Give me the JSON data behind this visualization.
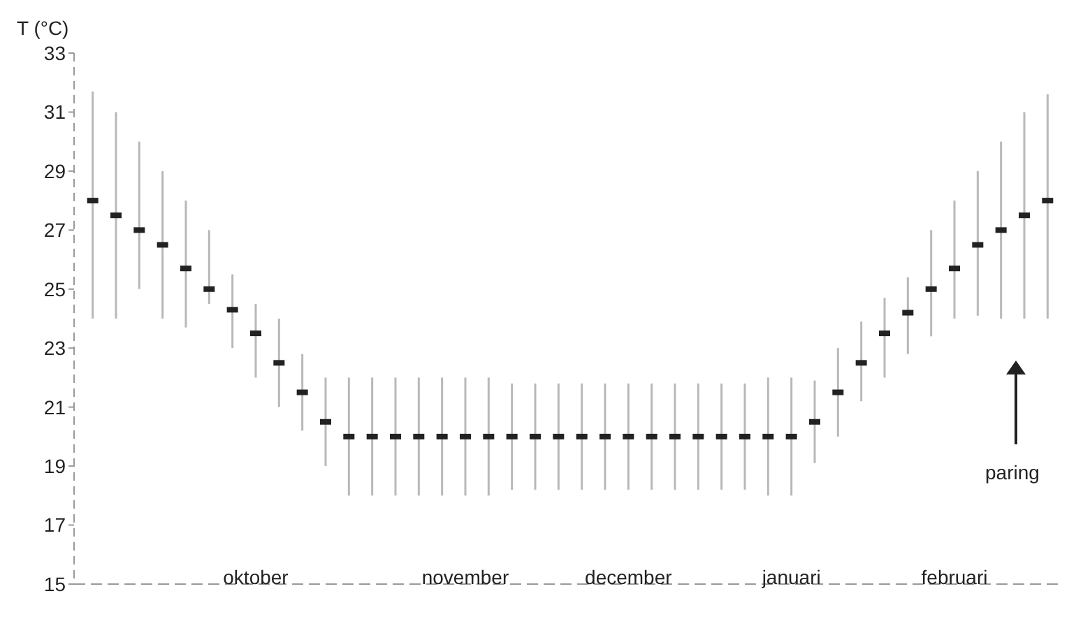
{
  "chart_data": {
    "type": "scatter",
    "ylabel": "T (°C)",
    "categories": [
      null,
      null,
      null,
      null,
      null,
      null,
      null,
      "oktober",
      null,
      null,
      null,
      null,
      null,
      null,
      null,
      null,
      "november",
      null,
      null,
      null,
      null,
      null,
      null,
      "december",
      null,
      null,
      null,
      null,
      null,
      null,
      "januari",
      null,
      null,
      null,
      null,
      null,
      null,
      "februari",
      null,
      null,
      null,
      null
    ],
    "series": [
      {
        "color": "#222222",
        "values": [
          28.0,
          27.5,
          27.0,
          26.5,
          25.7,
          25.0,
          24.3,
          23.5,
          22.5,
          21.5,
          20.5,
          20,
          20,
          20,
          20,
          20,
          20,
          20,
          20,
          20,
          20,
          20,
          20,
          20,
          20,
          20,
          20,
          20,
          20,
          20,
          20,
          20.5,
          21.5,
          22.5,
          23.5,
          24.2,
          25.0,
          25.7,
          26.5,
          27.0,
          27.5,
          28.0
        ],
        "errors": [
          [
            24,
            31.7
          ],
          [
            24,
            31
          ],
          [
            25,
            30
          ],
          [
            24,
            29
          ],
          [
            23.7,
            28
          ],
          [
            24.5,
            27
          ],
          [
            23,
            25.5
          ],
          [
            22,
            24.5
          ],
          [
            21,
            24
          ],
          [
            20.2,
            22.8
          ],
          [
            19,
            22
          ],
          [
            18,
            22
          ],
          [
            18,
            22
          ],
          [
            18,
            22
          ],
          [
            18,
            22
          ],
          [
            18,
            22
          ],
          [
            18,
            22
          ],
          [
            18,
            22
          ],
          [
            18.2,
            21.8
          ],
          [
            18.2,
            21.8
          ],
          [
            18.2,
            21.8
          ],
          [
            18.2,
            21.8
          ],
          [
            18.2,
            21.8
          ],
          [
            18.2,
            21.8
          ],
          [
            18.2,
            21.8
          ],
          [
            18.2,
            21.8
          ],
          [
            18.2,
            21.8
          ],
          [
            18.2,
            21.8
          ],
          [
            18.2,
            21.8
          ],
          [
            18,
            22
          ],
          [
            18,
            22
          ],
          [
            19.1,
            21.9
          ],
          [
            20,
            23
          ],
          [
            21.2,
            23.9
          ],
          [
            22,
            24.7
          ],
          [
            22.8,
            25.4
          ],
          [
            23.4,
            27
          ],
          [
            24,
            28
          ],
          [
            24.1,
            29
          ],
          [
            24,
            30
          ],
          [
            24,
            31
          ],
          [
            24,
            31.6
          ]
        ]
      }
    ],
    "ylim": [
      15,
      33
    ],
    "yticks": [
      15,
      17,
      19,
      21,
      23,
      25,
      27,
      29,
      31,
      33
    ],
    "marker": "square",
    "grid": false,
    "legend": false,
    "annotations": [
      "paring"
    ]
  }
}
